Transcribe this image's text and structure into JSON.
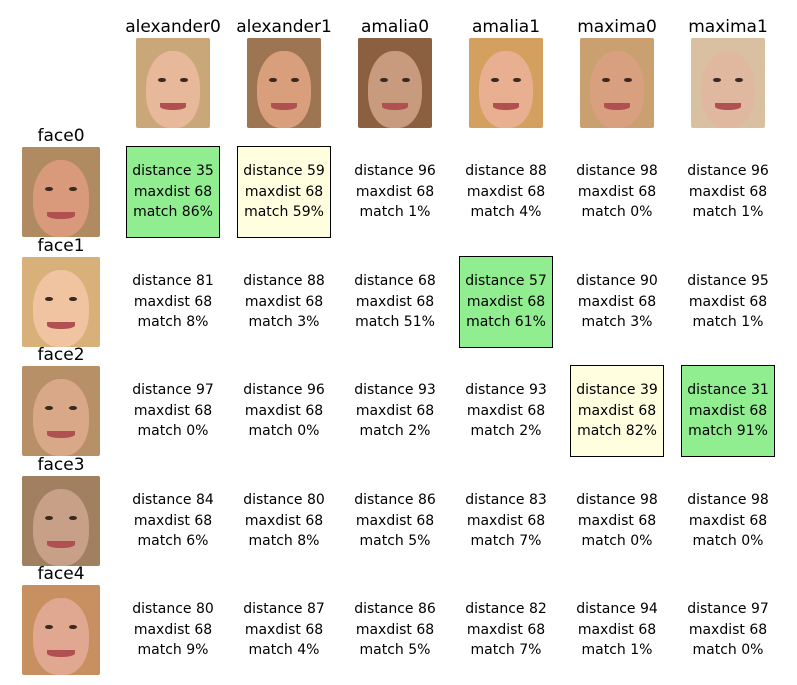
{
  "columns": [
    {
      "label": "alexander0",
      "icon": "face-photo-icon",
      "tone": "#e8b89a",
      "hair": "#c9a779"
    },
    {
      "label": "alexander1",
      "icon": "face-photo-icon",
      "tone": "#d99f7c",
      "hair": "#9e7552"
    },
    {
      "label": "amalia0",
      "icon": "face-photo-icon",
      "tone": "#c89a7e",
      "hair": "#8a6040"
    },
    {
      "label": "amalia1",
      "icon": "face-photo-icon",
      "tone": "#e8b090",
      "hair": "#d4a060"
    },
    {
      "label": "maxima0",
      "icon": "face-photo-icon",
      "tone": "#d9a080",
      "hair": "#caa070"
    },
    {
      "label": "maxima1",
      "icon": "face-photo-icon",
      "tone": "#e0b8a0",
      "hair": "#d8c0a0"
    }
  ],
  "rows": [
    {
      "label": "face0",
      "icon": "face-photo-icon",
      "tone": "#d99a7c",
      "hair": "#b08a60",
      "cells": [
        {
          "distance": "distance 35",
          "maxdist": "maxdist 68",
          "match": "match 86%",
          "highlight": "green"
        },
        {
          "distance": "distance 59",
          "maxdist": "maxdist 68",
          "match": "match 59%",
          "highlight": "yellow"
        },
        {
          "distance": "distance 96",
          "maxdist": "maxdist 68",
          "match": "match 1%",
          "highlight": "none"
        },
        {
          "distance": "distance 88",
          "maxdist": "maxdist 68",
          "match": "match 4%",
          "highlight": "none"
        },
        {
          "distance": "distance 98",
          "maxdist": "maxdist 68",
          "match": "match 0%",
          "highlight": "none"
        },
        {
          "distance": "distance 96",
          "maxdist": "maxdist 68",
          "match": "match 1%",
          "highlight": "none"
        }
      ]
    },
    {
      "label": "face1",
      "icon": "face-photo-icon",
      "tone": "#f0c4a0",
      "hair": "#d8b07a",
      "cells": [
        {
          "distance": "distance 81",
          "maxdist": "maxdist 68",
          "match": "match 8%",
          "highlight": "none"
        },
        {
          "distance": "distance 88",
          "maxdist": "maxdist 68",
          "match": "match 3%",
          "highlight": "none"
        },
        {
          "distance": "distance 68",
          "maxdist": "maxdist 68",
          "match": "match 51%",
          "highlight": "none"
        },
        {
          "distance": "distance 57",
          "maxdist": "maxdist 68",
          "match": "match 61%",
          "highlight": "green"
        },
        {
          "distance": "distance 90",
          "maxdist": "maxdist 68",
          "match": "match 3%",
          "highlight": "none"
        },
        {
          "distance": "distance 95",
          "maxdist": "maxdist 68",
          "match": "match 1%",
          "highlight": "none"
        }
      ]
    },
    {
      "label": "face2",
      "icon": "face-photo-icon",
      "tone": "#d8a888",
      "hair": "#b89068",
      "cells": [
        {
          "distance": "distance 97",
          "maxdist": "maxdist 68",
          "match": "match 0%",
          "highlight": "none"
        },
        {
          "distance": "distance 96",
          "maxdist": "maxdist 68",
          "match": "match 0%",
          "highlight": "none"
        },
        {
          "distance": "distance 93",
          "maxdist": "maxdist 68",
          "match": "match 2%",
          "highlight": "none"
        },
        {
          "distance": "distance 93",
          "maxdist": "maxdist 68",
          "match": "match 2%",
          "highlight": "none"
        },
        {
          "distance": "distance 39",
          "maxdist": "maxdist 68",
          "match": "match 82%",
          "highlight": "yellow"
        },
        {
          "distance": "distance 31",
          "maxdist": "maxdist 68",
          "match": "match 91%",
          "highlight": "green"
        }
      ]
    },
    {
      "label": "face3",
      "icon": "face-photo-icon",
      "tone": "#c8a088",
      "hair": "#a08060",
      "cells": [
        {
          "distance": "distance 84",
          "maxdist": "maxdist 68",
          "match": "match 6%",
          "highlight": "none"
        },
        {
          "distance": "distance 80",
          "maxdist": "maxdist 68",
          "match": "match 8%",
          "highlight": "none"
        },
        {
          "distance": "distance 86",
          "maxdist": "maxdist 68",
          "match": "match 5%",
          "highlight": "none"
        },
        {
          "distance": "distance 83",
          "maxdist": "maxdist 68",
          "match": "match 7%",
          "highlight": "none"
        },
        {
          "distance": "distance 98",
          "maxdist": "maxdist 68",
          "match": "match 0%",
          "highlight": "none"
        },
        {
          "distance": "distance 98",
          "maxdist": "maxdist 68",
          "match": "match 0%",
          "highlight": "none"
        }
      ]
    },
    {
      "label": "face4",
      "icon": "face-photo-icon",
      "tone": "#e0a890",
      "hair": "#c89060",
      "cells": [
        {
          "distance": "distance 80",
          "maxdist": "maxdist 68",
          "match": "match 9%",
          "highlight": "none"
        },
        {
          "distance": "distance 87",
          "maxdist": "maxdist 68",
          "match": "match 4%",
          "highlight": "none"
        },
        {
          "distance": "distance 86",
          "maxdist": "maxdist 68",
          "match": "match 5%",
          "highlight": "none"
        },
        {
          "distance": "distance 82",
          "maxdist": "maxdist 68",
          "match": "match 7%",
          "highlight": "none"
        },
        {
          "distance": "distance 94",
          "maxdist": "maxdist 68",
          "match": "match 1%",
          "highlight": "none"
        },
        {
          "distance": "distance 97",
          "maxdist": "maxdist 68",
          "match": "match 0%",
          "highlight": "none"
        }
      ]
    }
  ],
  "colors": {
    "green": "#90ee90",
    "yellow": "#ffffe0",
    "border": "#000000"
  }
}
